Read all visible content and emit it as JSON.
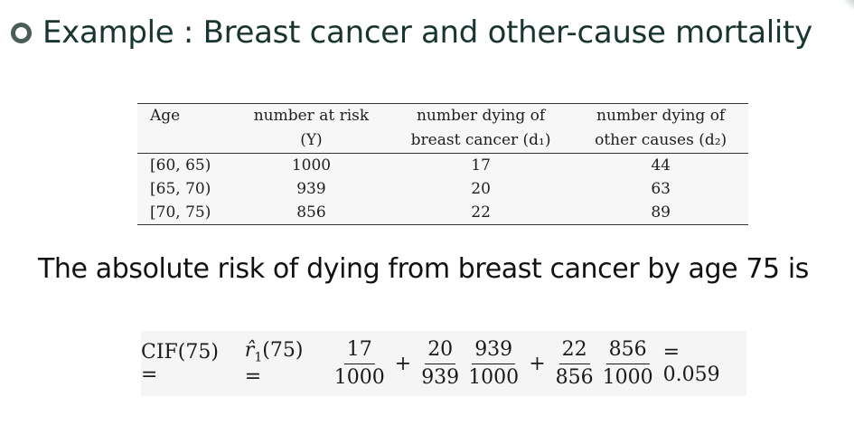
{
  "heading": {
    "title": "Example : Breast cancer and other-cause mortality"
  },
  "table": {
    "headers": {
      "age": "Age",
      "risk_line1": "number at risk",
      "risk_line2": "(Y)",
      "breast_line1": "number dying of",
      "breast_line2": "breast cancer (d₁)",
      "other_line1": "number dying of",
      "other_line2": "other causes (d₂)"
    },
    "rows": [
      {
        "age": "[60, 65)",
        "at_risk": "1000",
        "breast": "17",
        "other": "44"
      },
      {
        "age": "[65, 70)",
        "at_risk": "939",
        "breast": "20",
        "other": "63"
      },
      {
        "age": "[70, 75)",
        "at_risk": "856",
        "breast": "22",
        "other": "89"
      }
    ]
  },
  "statement": "The absolute risk of dying from breast cancer by age 75 is",
  "formula": {
    "lhs": "CIF(75) = ",
    "rhat": "r̂",
    "rhat_sub": "1",
    "rhat_arg": "(75) =",
    "f1_num": "17",
    "f1_den": "1000",
    "plus1": "+",
    "f2_num": "20",
    "f2_den": "939",
    "f3_num": "939",
    "f3_den": "1000",
    "plus2": "+",
    "f4_num": "22",
    "f4_den": "856",
    "f5_num": "856",
    "f5_den": "1000",
    "result": "= 0.059"
  },
  "colors": {
    "heading": "#183530",
    "bullet": "#4a5d57",
    "box_background": "#f5f5f5"
  }
}
